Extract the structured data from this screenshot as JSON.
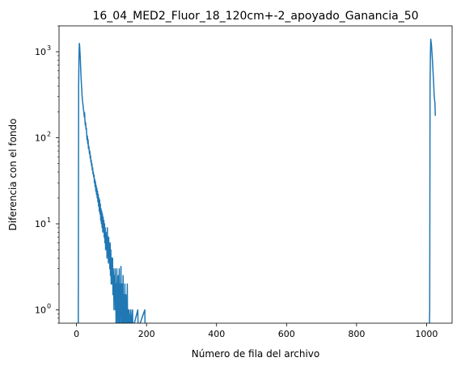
{
  "chart_data": {
    "type": "line",
    "title": "16_04_MED2_Fluor_18_120cm+-2_apoyado_Ganancia_50",
    "xlabel": "Número de fila del archivo",
    "ylabel": "Diferencia con el fondo",
    "y_scale": "log",
    "xlim": [
      -50,
      1073
    ],
    "ylim": [
      0.7,
      2000
    ],
    "x_ticks": [
      0,
      200,
      400,
      600,
      800,
      1000
    ],
    "x_tick_labels": [
      "0",
      "200",
      "400",
      "600",
      "800",
      "1000"
    ],
    "y_ticks": [
      1,
      10,
      100,
      1000
    ],
    "y_tick_labels": [
      "10",
      "10",
      "10",
      "10"
    ],
    "y_tick_exponents": [
      "0",
      "1",
      "2",
      "3"
    ],
    "grid": false,
    "line_color": "#1f77b4",
    "series": [
      {
        "points": [
          [
            5,
            0.6
          ],
          [
            6,
            400
          ],
          [
            7,
            900
          ],
          [
            8,
            1250
          ],
          [
            9,
            1150
          ],
          [
            10,
            950
          ],
          [
            11,
            780
          ],
          [
            12,
            620
          ],
          [
            13,
            500
          ],
          [
            14,
            420
          ],
          [
            15,
            360
          ],
          [
            16,
            300
          ],
          [
            17,
            270
          ],
          [
            18,
            250
          ],
          [
            19,
            230
          ],
          [
            20,
            210
          ],
          [
            21,
            200
          ],
          [
            22,
            175
          ],
          [
            23,
            195
          ],
          [
            24,
            160
          ],
          [
            25,
            140
          ],
          [
            26,
            150
          ],
          [
            27,
            125
          ],
          [
            28,
            130
          ],
          [
            29,
            110
          ],
          [
            30,
            95
          ],
          [
            31,
            105
          ],
          [
            32,
            85
          ],
          [
            33,
            95
          ],
          [
            34,
            75
          ],
          [
            35,
            80
          ],
          [
            36,
            72
          ],
          [
            37,
            65
          ],
          [
            38,
            70
          ],
          [
            39,
            58
          ],
          [
            40,
            62
          ],
          [
            41,
            52
          ],
          [
            42,
            55
          ],
          [
            43,
            47
          ],
          [
            44,
            50
          ],
          [
            45,
            42
          ],
          [
            46,
            45
          ],
          [
            47,
            38
          ],
          [
            48,
            40
          ],
          [
            49,
            35
          ],
          [
            50,
            37
          ],
          [
            51,
            30
          ],
          [
            52,
            33
          ],
          [
            53,
            27
          ],
          [
            54,
            31
          ],
          [
            55,
            24
          ],
          [
            56,
            28
          ],
          [
            57,
            22
          ],
          [
            58,
            26
          ],
          [
            59,
            20
          ],
          [
            60,
            24
          ],
          [
            61,
            18
          ],
          [
            62,
            22
          ],
          [
            63,
            16
          ],
          [
            64,
            20
          ],
          [
            65,
            14
          ],
          [
            66,
            19
          ],
          [
            67,
            13
          ],
          [
            68,
            17
          ],
          [
            69,
            11
          ],
          [
            70,
            15
          ],
          [
            71,
            10
          ],
          [
            72,
            14
          ],
          [
            73,
            9
          ],
          [
            74,
            13
          ],
          [
            75,
            8
          ],
          [
            76,
            12
          ],
          [
            77,
            9
          ],
          [
            78,
            11
          ],
          [
            79,
            7
          ],
          [
            80,
            10
          ],
          [
            81,
            6
          ],
          [
            82,
            9
          ],
          [
            83,
            5
          ],
          [
            84,
            8
          ],
          [
            85,
            6
          ],
          [
            86,
            7
          ],
          [
            87,
            4
          ],
          [
            88,
            9
          ],
          [
            89,
            5
          ],
          [
            90,
            6
          ],
          [
            91,
            3.5
          ],
          [
            92,
            7
          ],
          [
            93,
            4
          ],
          [
            94,
            5
          ],
          [
            95,
            3
          ],
          [
            96,
            6
          ],
          [
            97,
            2.5
          ],
          [
            98,
            5
          ],
          [
            99,
            2
          ],
          [
            100,
            4
          ],
          [
            101,
            3
          ],
          [
            102,
            2
          ],
          [
            103,
            4
          ],
          [
            104,
            1.5
          ],
          [
            105,
            3
          ],
          [
            106,
            2
          ],
          [
            107,
            1
          ],
          [
            108,
            2.5
          ],
          [
            109,
            1.5
          ],
          [
            110,
            3
          ],
          [
            111,
            1
          ],
          [
            112,
            2
          ],
          [
            113,
            0.6
          ],
          [
            114,
            1.5
          ],
          [
            115,
            3
          ],
          [
            116,
            0.6
          ],
          [
            117,
            2
          ],
          [
            118,
            1
          ],
          [
            119,
            2.5
          ],
          [
            120,
            0.6
          ],
          [
            121,
            1.5
          ],
          [
            122,
            3
          ],
          [
            123,
            1
          ],
          [
            124,
            0.6
          ],
          [
            125,
            2
          ],
          [
            126,
            1
          ],
          [
            127,
            3.2
          ],
          [
            128,
            0.6
          ],
          [
            129,
            1.5
          ],
          [
            130,
            2
          ],
          [
            131,
            0.6
          ],
          [
            132,
            1
          ],
          [
            133,
            2.5
          ],
          [
            134,
            0.6
          ],
          [
            135,
            1.5
          ],
          [
            136,
            1
          ],
          [
            137,
            0.6
          ],
          [
            138,
            2
          ],
          [
            139,
            0.6
          ],
          [
            140,
            1
          ],
          [
            141,
            1.5
          ],
          [
            142,
            0.6
          ],
          [
            143,
            1
          ],
          [
            144,
            0.6
          ],
          [
            145,
            2
          ],
          [
            146,
            0.6
          ],
          [
            147,
            1
          ],
          [
            148,
            0.6
          ],
          [
            150,
            1
          ],
          [
            151,
            0.6
          ],
          [
            155,
            1
          ],
          [
            156,
            0.6
          ],
          [
            160,
            1
          ],
          [
            161,
            0.6
          ],
          [
            175,
            1
          ],
          [
            176,
            0.6
          ],
          [
            195,
            1
          ],
          [
            196,
            0.6
          ],
          [
            1008,
            0.6
          ],
          [
            1009,
            1
          ],
          [
            1010,
            400
          ],
          [
            1011,
            900
          ],
          [
            1012,
            1400
          ],
          [
            1014,
            1200
          ],
          [
            1016,
            900
          ],
          [
            1018,
            650
          ],
          [
            1020,
            450
          ],
          [
            1022,
            300
          ],
          [
            1024,
            250
          ],
          [
            1025,
            180
          ]
        ]
      }
    ]
  }
}
